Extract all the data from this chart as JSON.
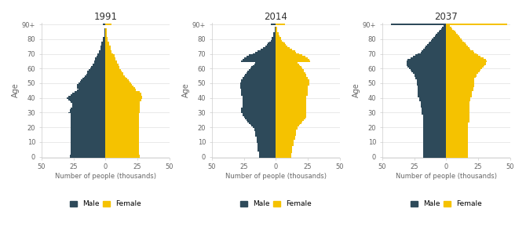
{
  "years": [
    "1991",
    "2014",
    "2037"
  ],
  "male_color": "#2e4a5a",
  "female_color": "#f5c200",
  "ages": [
    0,
    1,
    2,
    3,
    4,
    5,
    6,
    7,
    8,
    9,
    10,
    11,
    12,
    13,
    14,
    15,
    16,
    17,
    18,
    19,
    20,
    21,
    22,
    23,
    24,
    25,
    26,
    27,
    28,
    29,
    30,
    31,
    32,
    33,
    34,
    35,
    36,
    37,
    38,
    39,
    40,
    41,
    42,
    43,
    44,
    45,
    46,
    47,
    48,
    49,
    50,
    51,
    52,
    53,
    54,
    55,
    56,
    57,
    58,
    59,
    60,
    61,
    62,
    63,
    64,
    65,
    66,
    67,
    68,
    69,
    70,
    71,
    72,
    73,
    74,
    75,
    76,
    77,
    78,
    79,
    80,
    81,
    82,
    83,
    84,
    85,
    86,
    87,
    88,
    89,
    90
  ],
  "male_1991": [
    28,
    28,
    27,
    27,
    27,
    27,
    27,
    27,
    27,
    27,
    27,
    27,
    27,
    27,
    27,
    27,
    27,
    27,
    27,
    27,
    27,
    27,
    27,
    27,
    27,
    27,
    27,
    27,
    27,
    27,
    29,
    28,
    28,
    27,
    26,
    26,
    26,
    27,
    28,
    29,
    30,
    29,
    27,
    26,
    24,
    22,
    21,
    22,
    22,
    22,
    21,
    20,
    19,
    18,
    17,
    16,
    15,
    14,
    14,
    13,
    12,
    11,
    10,
    10,
    9,
    9,
    8,
    8,
    7,
    6,
    6,
    5,
    5,
    4,
    4,
    4,
    3,
    3,
    3,
    2,
    2,
    2,
    1,
    1,
    1,
    1,
    1,
    1,
    0,
    0,
    2
  ],
  "female_1991": [
    27,
    27,
    26,
    26,
    26,
    26,
    26,
    26,
    26,
    26,
    26,
    26,
    26,
    26,
    26,
    26,
    26,
    26,
    26,
    26,
    26,
    26,
    26,
    26,
    26,
    26,
    26,
    26,
    26,
    26,
    27,
    27,
    27,
    27,
    27,
    27,
    27,
    27,
    28,
    28,
    29,
    29,
    28,
    28,
    27,
    24,
    24,
    23,
    22,
    21,
    20,
    19,
    18,
    17,
    16,
    15,
    14,
    14,
    13,
    12,
    11,
    11,
    10,
    10,
    9,
    9,
    8,
    8,
    7,
    7,
    6,
    5,
    5,
    4,
    4,
    4,
    3,
    3,
    3,
    2,
    2,
    2,
    1,
    1,
    1,
    1,
    1,
    1,
    0,
    0,
    5
  ],
  "male_2014": [
    13,
    13,
    13,
    13,
    14,
    14,
    14,
    14,
    14,
    14,
    15,
    15,
    15,
    15,
    16,
    16,
    16,
    16,
    17,
    17,
    18,
    19,
    20,
    21,
    22,
    23,
    24,
    25,
    26,
    26,
    27,
    27,
    27,
    27,
    26,
    26,
    26,
    26,
    26,
    26,
    26,
    26,
    27,
    27,
    27,
    27,
    27,
    28,
    28,
    28,
    28,
    27,
    27,
    26,
    26,
    25,
    24,
    23,
    22,
    21,
    20,
    19,
    18,
    17,
    16,
    27,
    26,
    25,
    23,
    21,
    18,
    16,
    14,
    12,
    10,
    8,
    7,
    6,
    5,
    4,
    3,
    3,
    2,
    2,
    2,
    1,
    1,
    1,
    1,
    0,
    4
  ],
  "female_2014": [
    12,
    12,
    12,
    13,
    13,
    13,
    13,
    13,
    14,
    14,
    14,
    14,
    15,
    15,
    15,
    16,
    16,
    16,
    16,
    17,
    17,
    18,
    19,
    20,
    21,
    22,
    23,
    24,
    24,
    24,
    24,
    24,
    24,
    24,
    24,
    24,
    24,
    24,
    24,
    24,
    24,
    24,
    25,
    25,
    25,
    25,
    25,
    25,
    25,
    26,
    26,
    26,
    26,
    25,
    25,
    24,
    24,
    23,
    22,
    22,
    21,
    20,
    19,
    18,
    17,
    27,
    26,
    25,
    23,
    21,
    18,
    16,
    15,
    13,
    11,
    9,
    8,
    7,
    6,
    5,
    4,
    4,
    3,
    2,
    2,
    1,
    1,
    1,
    1,
    0,
    7
  ],
  "male_2037": [
    18,
    18,
    18,
    18,
    18,
    18,
    18,
    18,
    18,
    18,
    18,
    18,
    18,
    18,
    18,
    18,
    18,
    18,
    18,
    18,
    18,
    18,
    18,
    18,
    18,
    18,
    18,
    18,
    18,
    19,
    19,
    19,
    19,
    19,
    20,
    20,
    20,
    20,
    21,
    21,
    21,
    22,
    22,
    22,
    22,
    22,
    22,
    22,
    22,
    23,
    23,
    23,
    23,
    24,
    24,
    25,
    25,
    26,
    27,
    28,
    29,
    30,
    31,
    31,
    31,
    31,
    30,
    28,
    26,
    24,
    22,
    20,
    19,
    18,
    17,
    16,
    15,
    14,
    13,
    12,
    11,
    10,
    9,
    8,
    7,
    6,
    5,
    4,
    3,
    2,
    43
  ],
  "female_2037": [
    17,
    17,
    17,
    17,
    17,
    17,
    17,
    17,
    17,
    17,
    17,
    17,
    17,
    17,
    17,
    17,
    17,
    17,
    17,
    17,
    17,
    17,
    17,
    17,
    18,
    18,
    18,
    18,
    18,
    18,
    18,
    18,
    18,
    18,
    18,
    18,
    18,
    18,
    19,
    19,
    19,
    20,
    20,
    20,
    20,
    21,
    21,
    21,
    22,
    22,
    22,
    22,
    22,
    22,
    23,
    24,
    24,
    25,
    26,
    27,
    28,
    29,
    30,
    31,
    31,
    32,
    31,
    29,
    27,
    25,
    24,
    22,
    21,
    19,
    18,
    17,
    16,
    15,
    14,
    13,
    12,
    11,
    10,
    9,
    8,
    7,
    6,
    5,
    4,
    3,
    48
  ],
  "xlim": 50,
  "ylim_max": 91,
  "ytick_labels": [
    "0",
    "10",
    "20",
    "30",
    "40",
    "50",
    "60",
    "70",
    "80",
    "90+"
  ],
  "ytick_positions": [
    0,
    10,
    20,
    30,
    40,
    50,
    60,
    70,
    80,
    90
  ],
  "xlabel": "Number of people (thousands)",
  "ylabel": "Age",
  "background_color": "#ffffff",
  "legend_labels": [
    "Male",
    "Female"
  ]
}
